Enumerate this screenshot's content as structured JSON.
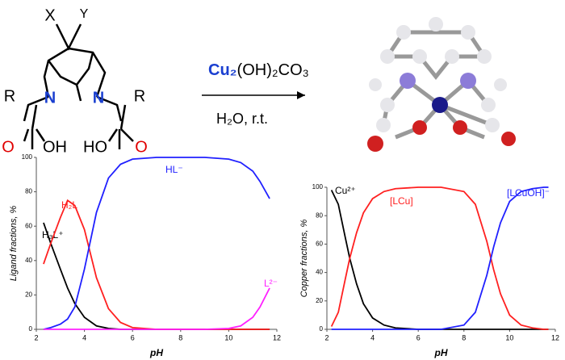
{
  "scheme": {
    "substituent_x": "X",
    "substituent_y": "Y",
    "r_left": "R",
    "n_left": "N",
    "n_right": "N",
    "r_right": "R",
    "o_left": "O",
    "oh_left": "OH",
    "ho_right": "HO",
    "o_right": "O",
    "reagent_metal": "Cu₂",
    "reagent_rest": "(OH)₂CO₃",
    "conditions": "H₂O, r.t."
  },
  "chart_data": [
    {
      "type": "line",
      "xlabel": "pH",
      "ylabel": "Ligand fractions, %",
      "x": [
        2.3,
        2.6,
        3.0,
        3.3,
        3.6,
        4.0,
        4.5,
        5.0,
        5.5,
        6,
        7,
        8,
        9,
        10,
        10.5,
        11,
        11.3,
        11.7
      ],
      "xlim": [
        2,
        12
      ],
      "xticks": [
        2,
        4,
        6,
        8,
        10,
        12
      ],
      "ylim": [
        0,
        100
      ],
      "yticks": [
        0,
        20,
        40,
        60,
        80,
        100
      ],
      "series": [
        {
          "name": "H₃L⁺",
          "color": "#000000",
          "values": [
            62,
            50,
            35,
            24,
            15,
            7,
            2,
            0.5,
            0,
            0,
            0,
            0,
            0,
            0,
            0,
            0,
            0,
            0
          ]
        },
        {
          "name": "H₂L",
          "color": "#ff2020",
          "values": [
            38,
            50,
            65,
            75,
            72,
            58,
            30,
            12,
            4,
            1,
            0,
            0,
            0,
            0,
            0,
            0,
            0,
            0
          ]
        },
        {
          "name": "HL⁻",
          "color": "#2020ff",
          "values": [
            0,
            1,
            3,
            6,
            13,
            35,
            68,
            88,
            96,
            99,
            100,
            100,
            100,
            99,
            97,
            92,
            86,
            76
          ]
        },
        {
          "name": "L²⁻",
          "color": "#ff20ff",
          "values": [
            0,
            0,
            0,
            0,
            0,
            0,
            0,
            0,
            0,
            0,
            0,
            0,
            0,
            0.5,
            2,
            7,
            13,
            24
          ]
        }
      ]
    },
    {
      "type": "line",
      "xlabel": "pH",
      "ylabel": "Copper fractions, %",
      "x": [
        2.2,
        2.5,
        2.8,
        3.0,
        3.3,
        3.6,
        4.0,
        4.5,
        5,
        6,
        7,
        8,
        8.5,
        9,
        9.3,
        9.6,
        10,
        10.5,
        11,
        11.5,
        11.7
      ],
      "xlim": [
        2,
        12
      ],
      "xticks": [
        2,
        4,
        6,
        8,
        10,
        12
      ],
      "ylim": [
        0,
        100
      ],
      "yticks": [
        0,
        20,
        40,
        60,
        80,
        100
      ],
      "series": [
        {
          "name": "Cu²⁺",
          "color": "#000000",
          "values": [
            98,
            88,
            65,
            50,
            32,
            18,
            8,
            3,
            1,
            0,
            0,
            0,
            0,
            0,
            0,
            0,
            0,
            0,
            0,
            0,
            0
          ]
        },
        {
          "name": "[LCu]",
          "color": "#ff2020",
          "values": [
            2,
            12,
            35,
            50,
            68,
            82,
            92,
            97,
            99,
            100,
            100,
            97,
            88,
            62,
            42,
            25,
            10,
            3,
            1,
            0,
            0
          ]
        },
        {
          "name": "[LCuOH]⁻",
          "color": "#2020ff",
          "values": [
            0,
            0,
            0,
            0,
            0,
            0,
            0,
            0,
            0,
            0,
            0,
            3,
            12,
            38,
            58,
            75,
            90,
            97,
            99,
            100,
            100
          ]
        }
      ]
    }
  ]
}
